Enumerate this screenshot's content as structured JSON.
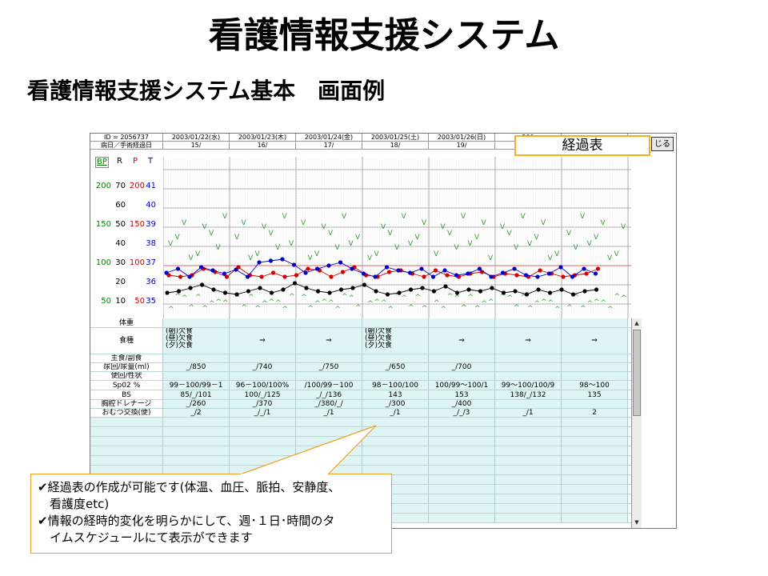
{
  "slide": {
    "title": "看護情報支援システム",
    "subtitle": "看護情報支援システム基本　画面例"
  },
  "app": {
    "header": {
      "id_label": "ID = 2056737",
      "day_label": "病日／手術経過日",
      "dates": [
        "2003/01/22(水)",
        "2003/01/23(木)",
        "2003/01/24(金)",
        "2003/01/25(土)",
        "2003/01/26(日)",
        "200",
        ""
      ],
      "days": [
        "15/",
        "16/",
        "17/",
        "18/",
        "19/",
        "",
        ""
      ]
    },
    "view_tab": "経過表",
    "close_button": "じる",
    "vital_modes": [
      "BP",
      "R",
      "P",
      "T"
    ],
    "axis_rows": [
      {
        "bp": "200",
        "r": "70",
        "p": "200",
        "t": "41"
      },
      {
        "bp": "",
        "r": "60",
        "p": "",
        "t": "40"
      },
      {
        "bp": "150",
        "r": "50",
        "p": "150",
        "t": "39"
      },
      {
        "bp": "",
        "r": "40",
        "p": "",
        "t": "38"
      },
      {
        "bp": "100",
        "r": "30",
        "p": "100",
        "t": "37"
      },
      {
        "bp": "",
        "r": "20",
        "p": "",
        "t": "36"
      },
      {
        "bp": "50",
        "r": "10",
        "p": "50",
        "t": "35"
      }
    ],
    "colors": {
      "bp_mode": "#008000",
      "pulse": "#d40000",
      "temp": "#0000c8",
      "resp": "#000000",
      "bp_marks": "#3a9a3a",
      "row_bg": "#dff4f4",
      "callout_border": "#f0a020"
    },
    "table": {
      "rows": [
        {
          "label": "体重",
          "cells": [
            "",
            "",
            "",
            "",
            "",
            "",
            ""
          ]
        },
        {
          "label": "食種",
          "cells": [
            "(朝)欠食\n(昼)欠食\n(夕)欠食",
            "⇒",
            "⇒",
            "(朝)欠食\n(昼)欠食\n(夕)欠食",
            "⇒",
            "⇒",
            "⇒"
          ]
        },
        {
          "label": "主食/副食",
          "cells": [
            "",
            "",
            "",
            "",
            "",
            "",
            ""
          ]
        },
        {
          "label": "尿回/尿量(ml)",
          "cells": [
            "_/850",
            "_/740",
            "_/750",
            "_/650",
            "_/700",
            "",
            ""
          ]
        },
        {
          "label": "便回/性状",
          "cells": [
            "",
            "",
            "",
            "",
            "",
            "",
            ""
          ]
        },
        {
          "label": "Sp02 %",
          "cells": [
            "99－100/99－1",
            "96－100/100%",
            "/100/99－100",
            "98－100/100",
            "100/99～100/1",
            "99～100/100/9",
            "98～100"
          ]
        },
        {
          "label": "BS",
          "cells": [
            "85/_/101",
            "100/_/125",
            "_/_/136",
            "143",
            "153",
            "138/_/132",
            "135"
          ]
        },
        {
          "label": "胸腔ドレナージ",
          "cells": [
            "_/260",
            "_/370",
            "_/380/_/",
            "_/300",
            "_/400",
            "",
            ""
          ]
        },
        {
          "label": "おむつ交換(便)",
          "cells": [
            "_/2",
            "_/_/1",
            "_/1",
            "_/1",
            "_/_/3",
            "_/1",
            "2"
          ]
        }
      ]
    }
  },
  "callout": {
    "lines": [
      "✔経過表の作成が可能です(体温、血圧、脈拍、安静度、",
      "　看護度etc)",
      "✔情報の経時的変化を明らかにして、週･１日･時間のタ",
      "　イムスケジュールにて表示ができます"
    ]
  }
}
